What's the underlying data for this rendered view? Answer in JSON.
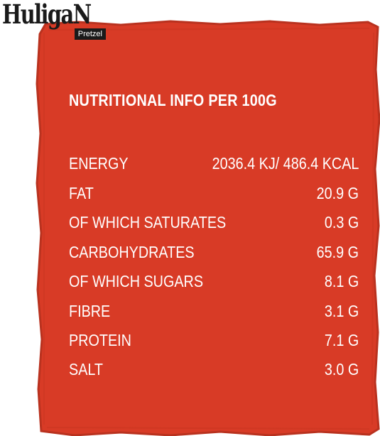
{
  "brand": {
    "name": "HuligaN",
    "tagline": "Pretzel"
  },
  "colors": {
    "panel": "#d83b26",
    "panel_edge": "#b9321f",
    "text": "#ffffff",
    "logo": "#1a1a1a"
  },
  "nutrition": {
    "title": "NUTRITIONAL INFO PER 100G",
    "rows": [
      {
        "label": "ENERGY",
        "value": "2036.4 KJ/ 486.4 KCAL"
      },
      {
        "label": "FAT",
        "value": "20.9 G"
      },
      {
        "label": "OF WHICH SATURATES",
        "value": "0.3 G"
      },
      {
        "label": "CARBOHYDRATES",
        "value": "65.9 G"
      },
      {
        "label": "OF WHICH SUGARS",
        "value": "8.1 G"
      },
      {
        "label": "FIBRE",
        "value": "3.1 G"
      },
      {
        "label": "PROTEIN",
        "value": "7.1 G"
      },
      {
        "label": "SALT",
        "value": "3.0 G"
      }
    ]
  }
}
